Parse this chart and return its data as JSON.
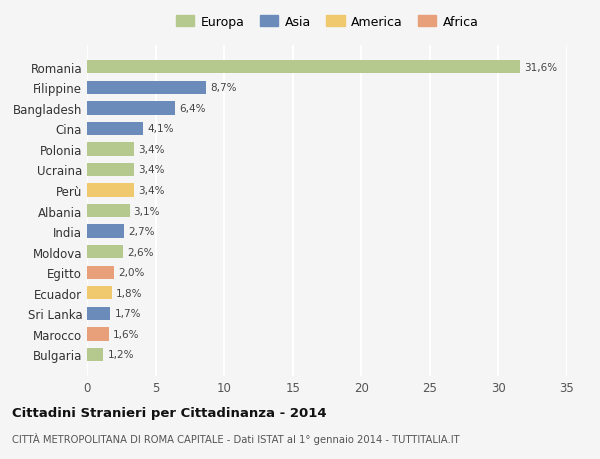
{
  "categories": [
    "Romania",
    "Filippine",
    "Bangladesh",
    "Cina",
    "Polonia",
    "Ucraina",
    "Perù",
    "Albania",
    "India",
    "Moldova",
    "Egitto",
    "Ecuador",
    "Sri Lanka",
    "Marocco",
    "Bulgaria"
  ],
  "values": [
    31.6,
    8.7,
    6.4,
    4.1,
    3.4,
    3.4,
    3.4,
    3.1,
    2.7,
    2.6,
    2.0,
    1.8,
    1.7,
    1.6,
    1.2
  ],
  "labels": [
    "31,6%",
    "8,7%",
    "6,4%",
    "4,1%",
    "3,4%",
    "3,4%",
    "3,4%",
    "3,1%",
    "2,7%",
    "2,6%",
    "2,0%",
    "1,8%",
    "1,7%",
    "1,6%",
    "1,2%"
  ],
  "continents": [
    "Europa",
    "Asia",
    "Asia",
    "Asia",
    "Europa",
    "Europa",
    "America",
    "Europa",
    "Asia",
    "Europa",
    "Africa",
    "America",
    "Asia",
    "Africa",
    "Europa"
  ],
  "colors": {
    "Europa": "#b5c98e",
    "Asia": "#6b8cba",
    "America": "#f0c96e",
    "Africa": "#e8a07a"
  },
  "legend_order": [
    "Europa",
    "Asia",
    "America",
    "Africa"
  ],
  "title": "Cittadini Stranieri per Cittadinanza - 2014",
  "subtitle": "CITTÀ METROPOLITANA DI ROMA CAPITALE - Dati ISTAT al 1° gennaio 2014 - TUTTITALIA.IT",
  "xlim": [
    0,
    35
  ],
  "xticks": [
    0,
    5,
    10,
    15,
    20,
    25,
    30,
    35
  ],
  "background_color": "#f5f5f5",
  "grid_color": "#ffffff"
}
